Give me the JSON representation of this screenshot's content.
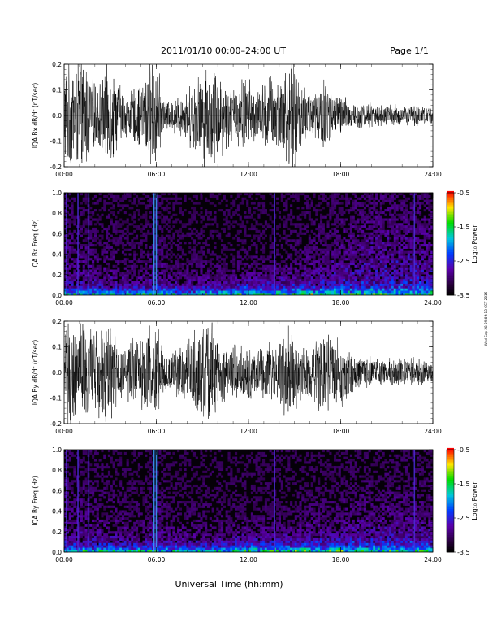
{
  "header": {
    "title": "2011/01/10   00:00–24:00 UT",
    "page_label": "Page 1/1"
  },
  "footer": {
    "xlabel": "Universal Time (hh:mm)",
    "side_stamp": "Wed Sep 28 09:06:13 CST 2016"
  },
  "chart_data": [
    {
      "type": "line",
      "ylabel": "IQA Bx dB/dt (nT/sec)",
      "xlim": [
        0,
        24
      ],
      "ylim": [
        -0.2,
        0.2
      ],
      "x_ticks": [
        "00:00",
        "06:00",
        "12:00",
        "18:00",
        "24:00"
      ],
      "y_ticks": [
        "0.2",
        "0.1",
        "0.0",
        "-0.1",
        "-0.2"
      ],
      "series": [
        {
          "x": [
            0,
            0.5,
            1,
            1.5,
            2,
            2.5,
            3,
            3.5,
            4,
            4.5,
            5,
            5.5,
            6,
            6.5,
            7,
            7.5,
            8,
            8.5,
            9,
            9.5,
            10,
            10.5,
            11,
            11.5,
            12,
            12.5,
            13,
            13.5,
            14,
            14.5,
            15,
            15.5,
            16,
            16.5,
            17,
            17.5,
            18,
            18.5,
            19,
            19.5,
            20,
            20.5,
            21,
            21.5,
            22,
            22.5,
            23,
            23.5,
            24
          ],
          "envelope": [
            0.2,
            0.2,
            0.2,
            0.2,
            0.12,
            0.14,
            0.2,
            0.13,
            0.08,
            0.1,
            0.12,
            0.2,
            0.2,
            0.07,
            0.06,
            0.08,
            0.1,
            0.14,
            0.18,
            0.2,
            0.18,
            0.13,
            0.1,
            0.14,
            0.15,
            0.09,
            0.13,
            0.16,
            0.14,
            0.2,
            0.2,
            0.12,
            0.1,
            0.1,
            0.18,
            0.08,
            0.08,
            0.06,
            0.05,
            0.045,
            0.05,
            0.04,
            0.04,
            0.045,
            0.04,
            0.035,
            0.04,
            0.035,
            0.03
          ]
        }
      ]
    },
    {
      "type": "heatmap",
      "ylabel": "IQA Bx Freq (Hz)",
      "xlim": [
        0,
        24
      ],
      "ylim": [
        0,
        1.0
      ],
      "x_ticks": [
        "00:00",
        "06:00",
        "12:00",
        "18:00",
        "24:00"
      ],
      "y_ticks": [
        "1.0",
        "0.8",
        "0.6",
        "0.4",
        "0.2",
        "0.0"
      ],
      "colorbar": {
        "label": "Log₁₀ Power",
        "range": [
          -3.5,
          -0.5
        ],
        "ticks": [
          "-0.5",
          "-1.5",
          "-2.5",
          "-3.5"
        ]
      },
      "spikes_hours": [
        0.15,
        0.9,
        1.6,
        5.85,
        6.0,
        13.7,
        22.8
      ],
      "low_freq_activity": [
        0.16,
        0.14,
        0.12,
        0.1,
        0.07,
        0.06,
        0.12,
        0.06,
        0.05,
        0.06,
        0.05,
        0.04,
        0.05,
        0.05,
        0.06,
        0.07,
        0.09,
        0.11,
        0.14,
        0.17,
        0.2,
        0.22,
        0.22,
        0.21,
        0.2
      ]
    },
    {
      "type": "line",
      "ylabel": "IQA By dB/dt (nT/sec)",
      "xlim": [
        0,
        24
      ],
      "ylim": [
        -0.2,
        0.2
      ],
      "x_ticks": [
        "00:00",
        "06:00",
        "12:00",
        "18:00",
        "24:00"
      ],
      "y_ticks": [
        "0.2",
        "0.1",
        "0.0",
        "-0.1",
        "-0.2"
      ],
      "series": [
        {
          "x": [
            0,
            0.5,
            1,
            1.5,
            2,
            2.5,
            3,
            3.5,
            4,
            4.5,
            5,
            5.5,
            6,
            6.5,
            7,
            7.5,
            8,
            8.5,
            9,
            9.5,
            10,
            10.5,
            11,
            11.5,
            12,
            12.5,
            13,
            13.5,
            14,
            14.5,
            15,
            15.5,
            16,
            16.5,
            17,
            17.5,
            18,
            18.5,
            19,
            19.5,
            20,
            20.5,
            21,
            21.5,
            22,
            22.5,
            23,
            23.5,
            24
          ],
          "envelope": [
            0.2,
            0.2,
            0.2,
            0.2,
            0.14,
            0.2,
            0.18,
            0.12,
            0.1,
            0.14,
            0.12,
            0.2,
            0.2,
            0.07,
            0.07,
            0.1,
            0.12,
            0.16,
            0.2,
            0.2,
            0.14,
            0.1,
            0.1,
            0.12,
            0.1,
            0.08,
            0.1,
            0.12,
            0.12,
            0.18,
            0.14,
            0.1,
            0.1,
            0.14,
            0.2,
            0.12,
            0.14,
            0.08,
            0.06,
            0.05,
            0.06,
            0.05,
            0.05,
            0.06,
            0.05,
            0.05,
            0.06,
            0.05,
            0.04
          ]
        }
      ]
    },
    {
      "type": "heatmap",
      "ylabel": "IQA By Freq (Hz)",
      "xlim": [
        0,
        24
      ],
      "ylim": [
        0,
        1.0
      ],
      "x_ticks": [
        "00:00",
        "06:00",
        "12:00",
        "18:00",
        "24:00"
      ],
      "y_ticks": [
        "1.0",
        "0.8",
        "0.6",
        "0.4",
        "0.2",
        "0.0"
      ],
      "colorbar": {
        "label": "Log₁₀ Power",
        "range": [
          -3.5,
          -0.5
        ],
        "ticks": [
          "-0.5",
          "-1.5",
          "-2.5",
          "-3.5"
        ]
      },
      "spikes_hours": [
        0.15,
        0.9,
        1.6,
        5.85,
        6.0,
        13.7,
        22.8
      ],
      "low_freq_activity": [
        0.16,
        0.14,
        0.12,
        0.1,
        0.08,
        0.06,
        0.12,
        0.07,
        0.06,
        0.06,
        0.06,
        0.05,
        0.05,
        0.05,
        0.06,
        0.06,
        0.07,
        0.08,
        0.09,
        0.1,
        0.11,
        0.12,
        0.12,
        0.11,
        0.1
      ]
    }
  ]
}
